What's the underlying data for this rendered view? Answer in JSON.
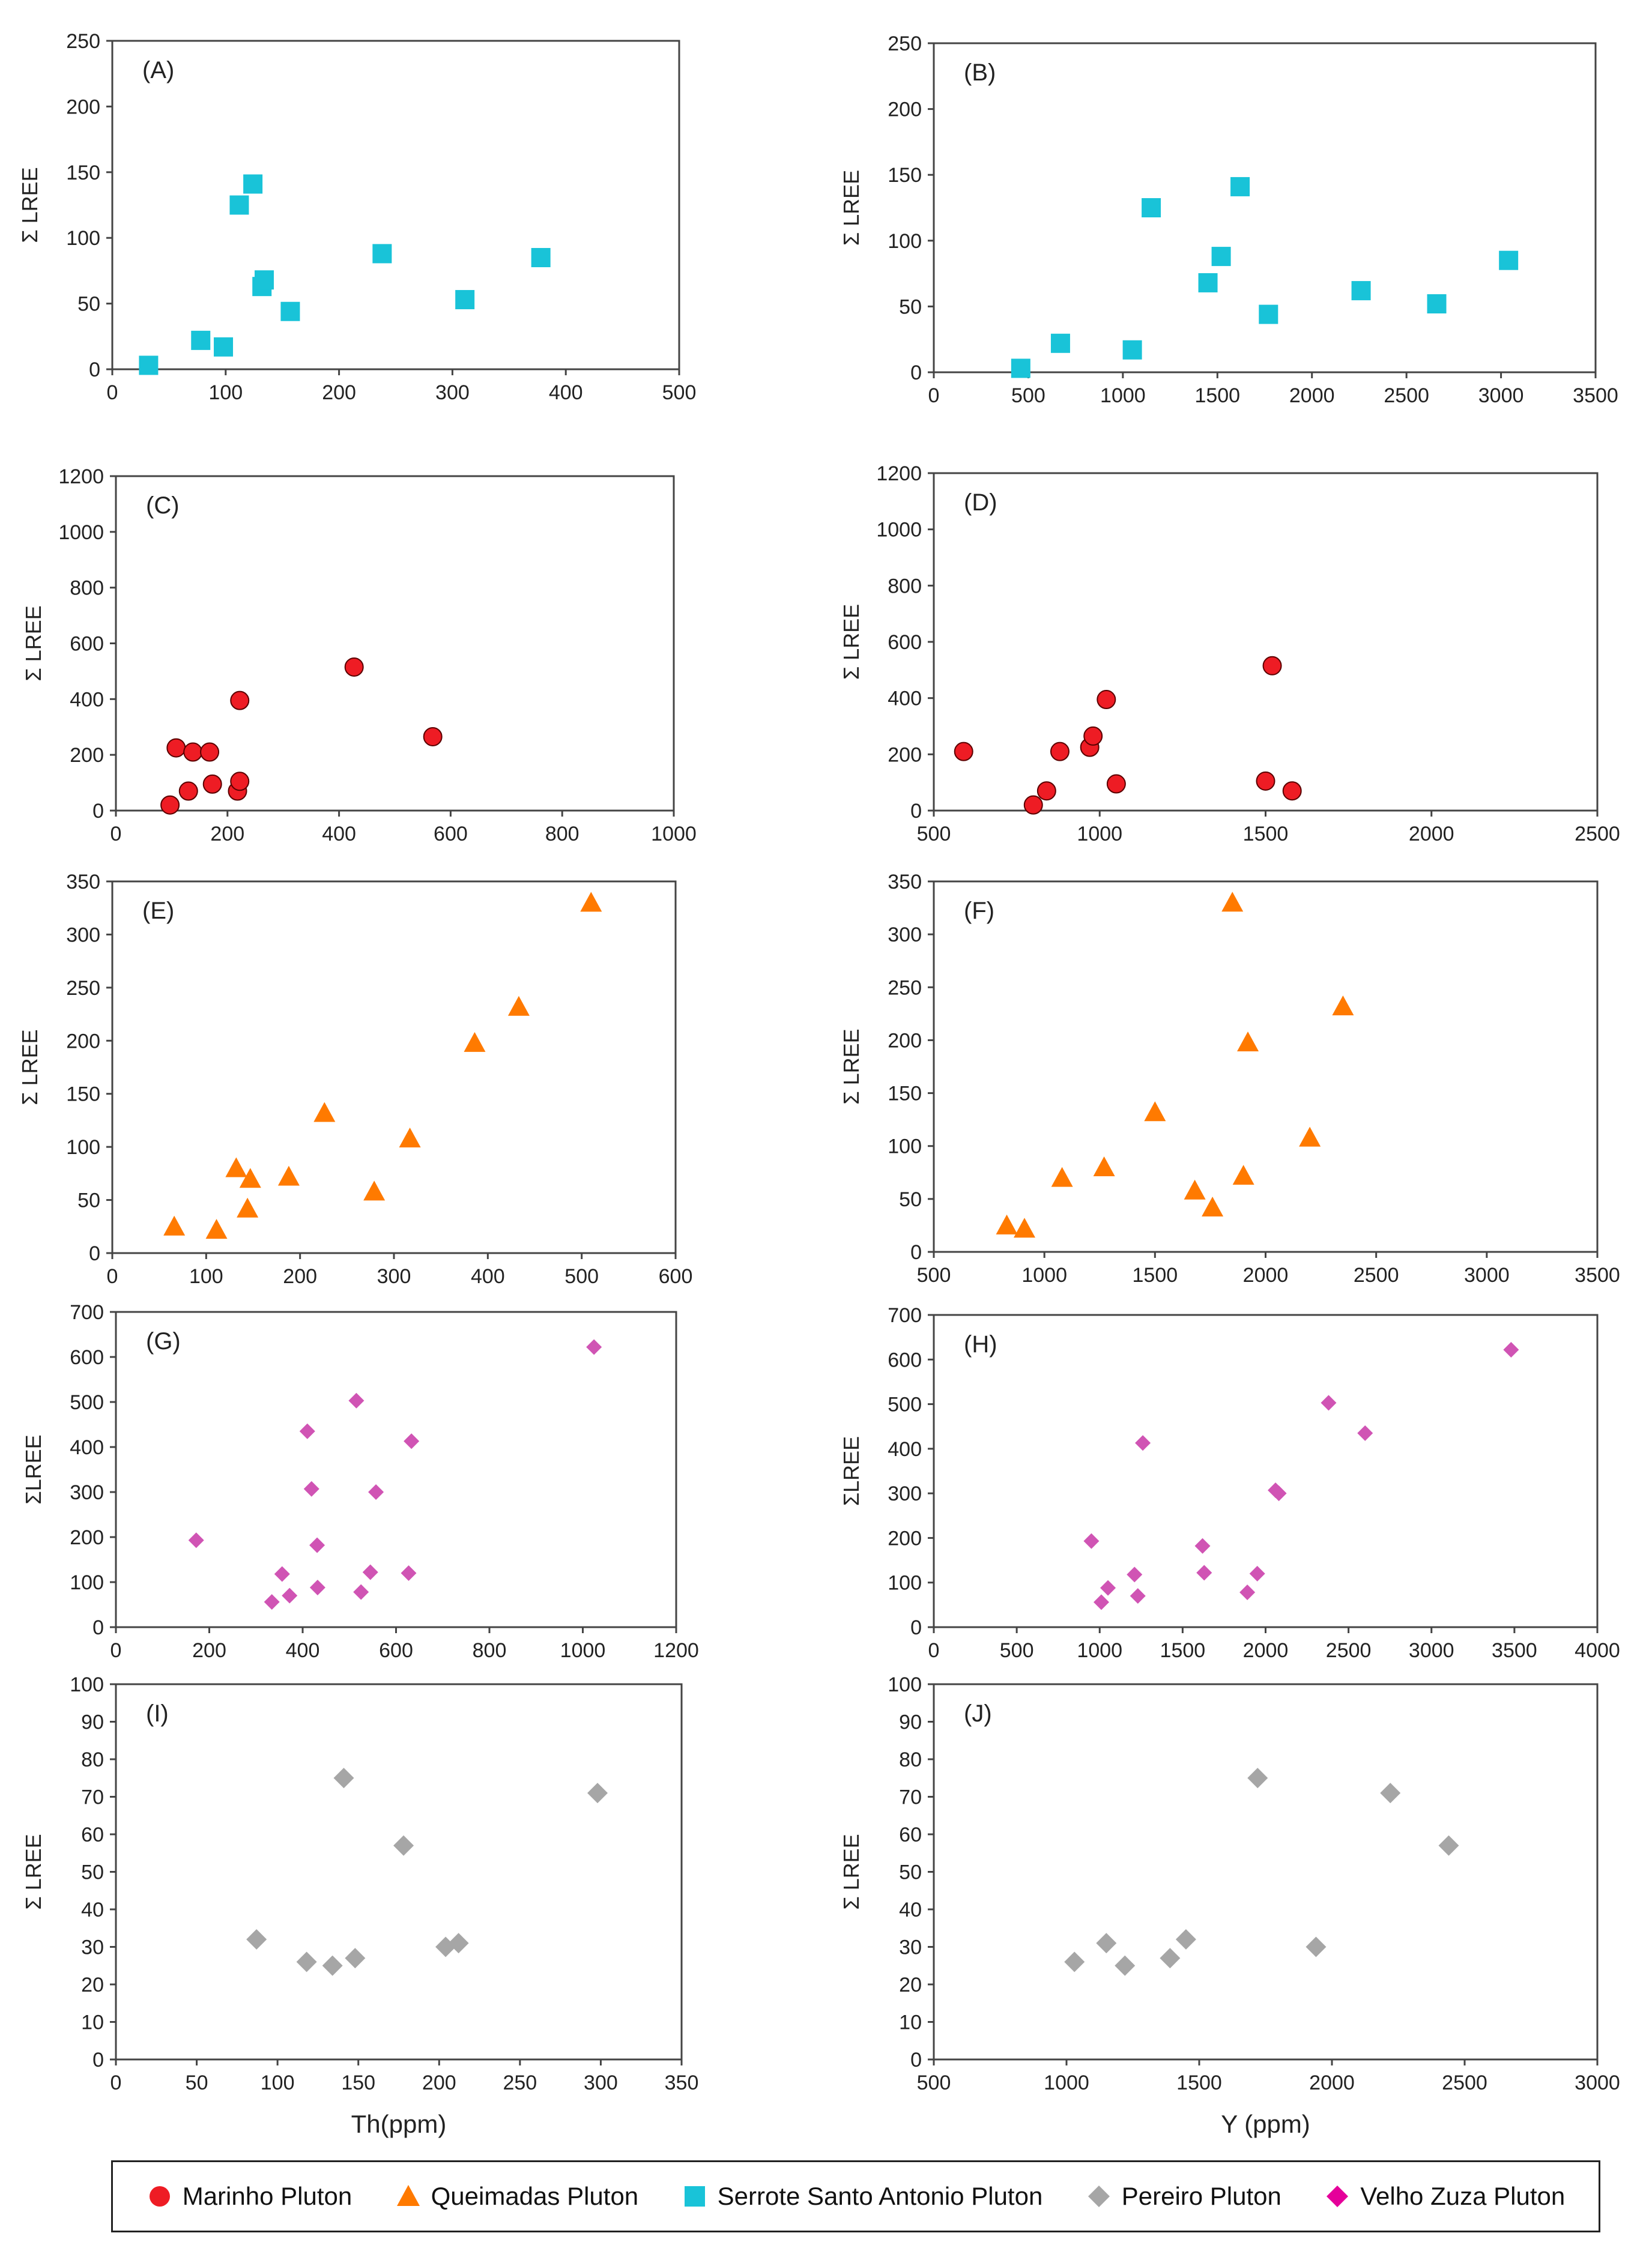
{
  "colors": {
    "marinho": "#ee1c24",
    "queimadas": "#ff7a00",
    "serrote": "#19c3d8",
    "pereiro": "#a6a6a6",
    "velho": "#e5009a",
    "velho_points": "#d054b4",
    "axis": "#444444",
    "text": "#222222"
  },
  "legend": [
    {
      "label": "Marinho Pluton",
      "shape": "circle",
      "color": "#ee1c24"
    },
    {
      "label": "Queimadas Pluton",
      "shape": "triangle",
      "color": "#ff7a00"
    },
    {
      "label": "Serrote Santo Antonio Pluton",
      "shape": "square",
      "color": "#19c3d8"
    },
    {
      "label": "Pereiro Pluton",
      "shape": "diamond",
      "color": "#a6a6a6"
    },
    {
      "label": "Velho Zuza Pluton",
      "shape": "diamond",
      "color": "#e5009a"
    }
  ],
  "chart_data": [
    {
      "type": "scatter",
      "panel": "(A)",
      "ylabel": "Σ LREE",
      "xlabel": "",
      "xlim": [
        0,
        500
      ],
      "xticks": [
        0,
        100,
        200,
        300,
        400,
        500
      ],
      "ylim": [
        0,
        250
      ],
      "yticks": [
        0,
        50,
        100,
        150,
        200,
        250
      ],
      "series": "Serrote Santo Antonio Pluton",
      "shape": "square",
      "color": "#19c3d8",
      "points": [
        [
          32,
          3
        ],
        [
          78,
          22
        ],
        [
          98,
          17
        ],
        [
          112,
          125
        ],
        [
          124,
          141
        ],
        [
          132,
          63
        ],
        [
          134,
          68
        ],
        [
          157,
          44
        ],
        [
          238,
          88
        ],
        [
          311,
          53
        ],
        [
          378,
          85
        ]
      ]
    },
    {
      "type": "scatter",
      "panel": "(B)",
      "ylabel": "Σ LREE",
      "xlabel": "",
      "xlim": [
        0,
        3500
      ],
      "xticks": [
        0,
        500,
        1000,
        1500,
        2000,
        2500,
        3000,
        3500
      ],
      "ylim": [
        0,
        250
      ],
      "yticks": [
        0,
        50,
        100,
        150,
        200,
        250
      ],
      "series": "Serrote Santo Antonio Pluton",
      "shape": "square",
      "color": "#19c3d8",
      "points": [
        [
          460,
          3
        ],
        [
          670,
          22
        ],
        [
          1050,
          17
        ],
        [
          1150,
          125
        ],
        [
          1450,
          68
        ],
        [
          1520,
          88
        ],
        [
          1620,
          141
        ],
        [
          1770,
          44
        ],
        [
          2260,
          62
        ],
        [
          2660,
          52
        ],
        [
          3040,
          85
        ]
      ]
    },
    {
      "type": "scatter",
      "panel": "(C)",
      "ylabel": "Σ LREE",
      "xlabel": "",
      "xlim": [
        0,
        1000
      ],
      "xticks": [
        0,
        200,
        400,
        600,
        800,
        1000
      ],
      "ylim": [
        0,
        1200
      ],
      "yticks": [
        0,
        200,
        400,
        600,
        800,
        1000,
        1200
      ],
      "series": "Marinho Pluton",
      "shape": "circle",
      "color": "#ee1c24",
      "points": [
        [
          97,
          20
        ],
        [
          108,
          225
        ],
        [
          130,
          70
        ],
        [
          138,
          210
        ],
        [
          168,
          210
        ],
        [
          173,
          95
        ],
        [
          218,
          70
        ],
        [
          222,
          105
        ],
        [
          222,
          395
        ],
        [
          427,
          515
        ],
        [
          568,
          265
        ]
      ]
    },
    {
      "type": "scatter",
      "panel": "(D)",
      "ylabel": "Σ LREE",
      "xlabel": "",
      "xlim": [
        500,
        2500
      ],
      "xticks": [
        500,
        1000,
        1500,
        2000,
        2500
      ],
      "ylim": [
        0,
        1200
      ],
      "yticks": [
        0,
        200,
        400,
        600,
        800,
        1000,
        1200
      ],
      "series": "Marinho Pluton",
      "shape": "circle",
      "color": "#ee1c24",
      "points": [
        [
          590,
          210
        ],
        [
          800,
          20
        ],
        [
          840,
          70
        ],
        [
          880,
          210
        ],
        [
          970,
          225
        ],
        [
          980,
          265
        ],
        [
          1020,
          395
        ],
        [
          1050,
          95
        ],
        [
          1500,
          105
        ],
        [
          1520,
          515
        ],
        [
          1580,
          70
        ]
      ]
    },
    {
      "type": "scatter",
      "panel": "(E)",
      "ylabel": "Σ LREE",
      "xlabel": "",
      "xlim": [
        0,
        600
      ],
      "xticks": [
        0,
        100,
        200,
        300,
        400,
        500,
        600
      ],
      "ylim": [
        0,
        350
      ],
      "yticks": [
        0,
        50,
        100,
        150,
        200,
        250,
        300,
        350
      ],
      "series": "Queimadas Pluton",
      "shape": "triangle",
      "color": "#ff7a00",
      "points": [
        [
          66,
          25
        ],
        [
          111,
          22
        ],
        [
          132,
          80
        ],
        [
          144,
          42
        ],
        [
          147,
          70
        ],
        [
          188,
          72
        ],
        [
          226,
          132
        ],
        [
          279,
          58
        ],
        [
          317,
          108
        ],
        [
          386,
          198
        ],
        [
          433,
          232
        ],
        [
          510,
          330
        ]
      ]
    },
    {
      "type": "scatter",
      "panel": "(F)",
      "ylabel": "Σ LREE",
      "xlabel": "",
      "xlim": [
        500,
        3500
      ],
      "xticks": [
        500,
        1000,
        1500,
        2000,
        2500,
        3000,
        3500
      ],
      "ylim": [
        0,
        350
      ],
      "yticks": [
        0,
        50,
        100,
        150,
        200,
        250,
        300,
        350
      ],
      "series": "Queimadas Pluton",
      "shape": "triangle",
      "color": "#ff7a00",
      "points": [
        [
          830,
          25
        ],
        [
          910,
          22
        ],
        [
          1080,
          70
        ],
        [
          1270,
          80
        ],
        [
          1500,
          132
        ],
        [
          1680,
          58
        ],
        [
          1760,
          42
        ],
        [
          1850,
          330
        ],
        [
          1900,
          72
        ],
        [
          1920,
          198
        ],
        [
          2200,
          108
        ],
        [
          2350,
          232
        ]
      ]
    },
    {
      "type": "scatter",
      "panel": "(G)",
      "ylabel": "ΣLREE",
      "xlabel": "",
      "xlim": [
        0,
        1200
      ],
      "xticks": [
        0,
        200,
        400,
        600,
        800,
        1000,
        1200
      ],
      "ylim": [
        0,
        700
      ],
      "yticks": [
        0,
        100,
        200,
        300,
        400,
        500,
        600,
        700
      ],
      "series": "Velho Zuza Pluton",
      "shape": "diamond",
      "color": "#d054b4",
      "points": [
        [
          172,
          193
        ],
        [
          334,
          56
        ],
        [
          356,
          118
        ],
        [
          372,
          70
        ],
        [
          410,
          435
        ],
        [
          419,
          307
        ],
        [
          431,
          182
        ],
        [
          432,
          88
        ],
        [
          515,
          503
        ],
        [
          525,
          78
        ],
        [
          545,
          122
        ],
        [
          557,
          300
        ],
        [
          627,
          120
        ],
        [
          633,
          413
        ],
        [
          1024,
          622
        ]
      ]
    },
    {
      "type": "scatter",
      "panel": "(H)",
      "ylabel": "ΣLREE",
      "xlabel": "",
      "xlim": [
        0,
        4000
      ],
      "xticks": [
        0,
        500,
        1000,
        1500,
        2000,
        2500,
        3000,
        3500,
        4000
      ],
      "ylim": [
        0,
        700
      ],
      "yticks": [
        0,
        100,
        200,
        300,
        400,
        500,
        600,
        700
      ],
      "series": "Velho Zuza Pluton",
      "shape": "diamond",
      "color": "#d054b4",
      "points": [
        [
          950,
          193
        ],
        [
          1010,
          56
        ],
        [
          1050,
          88
        ],
        [
          1210,
          118
        ],
        [
          1230,
          70
        ],
        [
          1260,
          413
        ],
        [
          1620,
          182
        ],
        [
          1630,
          122
        ],
        [
          1890,
          78
        ],
        [
          1950,
          120
        ],
        [
          2060,
          307
        ],
        [
          2080,
          300
        ],
        [
          2380,
          503
        ],
        [
          2600,
          435
        ],
        [
          3480,
          622
        ]
      ]
    },
    {
      "type": "scatter",
      "panel": "(I)",
      "ylabel": "Σ LREE",
      "xlabel": "Th(ppm)",
      "xlim": [
        0,
        350
      ],
      "xticks": [
        0,
        50,
        100,
        150,
        200,
        250,
        300,
        350
      ],
      "ylim": [
        0,
        100
      ],
      "yticks": [
        0,
        10,
        20,
        30,
        40,
        50,
        60,
        70,
        80,
        90,
        100
      ],
      "series": "Pereiro Pluton",
      "shape": "diamond",
      "color": "#a6a6a6",
      "points": [
        [
          87,
          32
        ],
        [
          118,
          26
        ],
        [
          141,
          75
        ],
        [
          134,
          25
        ],
        [
          148,
          27
        ],
        [
          178,
          57
        ],
        [
          204,
          30
        ],
        [
          212,
          31
        ],
        [
          298,
          71
        ]
      ]
    },
    {
      "type": "scatter",
      "panel": "(J)",
      "ylabel": "Σ LREE",
      "xlabel": "Y (ppm)",
      "xlim": [
        500,
        3000
      ],
      "xticks": [
        500,
        1000,
        1500,
        2000,
        2500,
        3000
      ],
      "ylim": [
        0,
        100
      ],
      "yticks": [
        0,
        10,
        20,
        30,
        40,
        50,
        60,
        70,
        80,
        90,
        100
      ],
      "series": "Pereiro Pluton",
      "shape": "diamond",
      "color": "#a6a6a6",
      "points": [
        [
          1030,
          26
        ],
        [
          1150,
          31
        ],
        [
          1220,
          25
        ],
        [
          1390,
          27
        ],
        [
          1450,
          32
        ],
        [
          1720,
          75
        ],
        [
          1940,
          30
        ],
        [
          2220,
          71
        ],
        [
          2440,
          57
        ]
      ]
    }
  ]
}
